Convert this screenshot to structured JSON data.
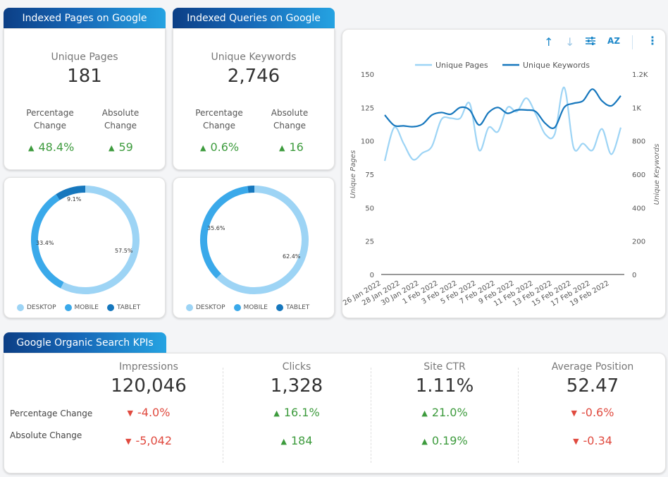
{
  "pages_card": {
    "tab": "Indexed Pages on Google",
    "title": "Unique Pages",
    "value": "181",
    "pct_label_1": "Percentage",
    "pct_label_2": "Change",
    "abs_label_1": "Absolute",
    "abs_label_2": "Change",
    "pct_change": "48.4%",
    "abs_change": "59"
  },
  "queries_card": {
    "tab": "Indexed Queries on Google",
    "title": "Unique Keywords",
    "value": "2,746",
    "pct_label_1": "Percentage",
    "pct_label_2": "Change",
    "abs_label_1": "Absolute",
    "abs_label_2": "Change",
    "pct_change": "0.6%",
    "abs_change": "16"
  },
  "colors": {
    "desktop": "#9dd4f5",
    "mobile": "#3aa9ea",
    "tablet": "#1677bd",
    "line_pages": "#9dd4f5",
    "line_keywords": "#1677bd",
    "up": "#3d9b3d",
    "down": "#e04a3f"
  },
  "toolbar": {
    "sort_up_icon": "↑",
    "sort_down_icon": "↓",
    "filter_icon": "⚙",
    "sort_az_icon": "AZ",
    "more_icon": "⋮"
  },
  "kpi_section": {
    "tab": "Google Organic Search KPIs",
    "row_pct": "Percentage Change",
    "row_abs": "Absolute Change",
    "columns": [
      {
        "title": "Impressions",
        "value": "120,046",
        "pct": "-4.0%",
        "abs": "-5,042",
        "pct_dir": "down",
        "abs_dir": "down"
      },
      {
        "title": "Clicks",
        "value": "1,328",
        "pct": "16.1%",
        "abs": "184",
        "pct_dir": "up",
        "abs_dir": "up"
      },
      {
        "title": "Site CTR",
        "value": "1.11%",
        "pct": "21.0%",
        "abs": "0.19%",
        "pct_dir": "up",
        "abs_dir": "up"
      },
      {
        "title": "Average Position",
        "value": "52.47",
        "pct": "-0.6%",
        "abs": "-0.34",
        "pct_dir": "down",
        "abs_dir": "down"
      }
    ]
  },
  "chart_data": [
    {
      "type": "pie",
      "donut": true,
      "categories": [
        "DESKTOP",
        "MOBILE",
        "TABLET"
      ],
      "values": [
        57.5,
        33.4,
        9.1
      ],
      "labels": [
        "57.5%",
        "33.4%",
        "9.1%"
      ],
      "legend_position": "bottom"
    },
    {
      "type": "pie",
      "donut": true,
      "categories": [
        "DESKTOP",
        "MOBILE",
        "TABLET"
      ],
      "values": [
        62.4,
        35.6,
        2.0
      ],
      "labels": [
        "62.4%",
        "35.6%",
        ""
      ],
      "legend_position": "bottom"
    },
    {
      "type": "line",
      "legend_position": "top",
      "xlabel": "",
      "ylabel": "Unique Pages",
      "y2label": "Unique Keywords",
      "ylim": [
        0,
        150
      ],
      "y2lim": [
        0,
        1200
      ],
      "yticks": [
        0,
        25,
        50,
        75,
        100,
        125,
        150
      ],
      "y2ticks": [
        0,
        200,
        400,
        600,
        800,
        1000,
        1200
      ],
      "y2ticklabels": [
        "0",
        "200",
        "400",
        "600",
        "800",
        "1K",
        "1.2K"
      ],
      "xticklabels": [
        "26 Jan 2022",
        "28 Jan 2022",
        "30 Jan 2022",
        "1 Feb 2022",
        "3 Feb 2022",
        "5 Feb 2022",
        "7 Feb 2022",
        "9 Feb 2022",
        "11 Feb 2022",
        "13 Feb 2022",
        "15 Feb 2022",
        "17 Feb 2022",
        "19 Feb 2022"
      ],
      "series": [
        {
          "name": "Unique Pages",
          "axis": "left",
          "values": [
            85,
            110,
            98,
            86,
            91,
            96,
            116,
            117,
            117,
            128,
            93,
            110,
            107,
            125,
            122,
            132,
            120,
            105,
            105,
            140,
            95,
            98,
            93,
            109,
            90,
            110
          ]
        },
        {
          "name": "Unique Keywords",
          "axis": "right",
          "values": [
            955,
            893,
            890,
            885,
            900,
            955,
            970,
            960,
            1000,
            985,
            895,
            970,
            1000,
            965,
            985,
            985,
            975,
            905,
            880,
            1000,
            1025,
            1040,
            1110,
            1040,
            1010,
            1070
          ]
        }
      ]
    }
  ]
}
